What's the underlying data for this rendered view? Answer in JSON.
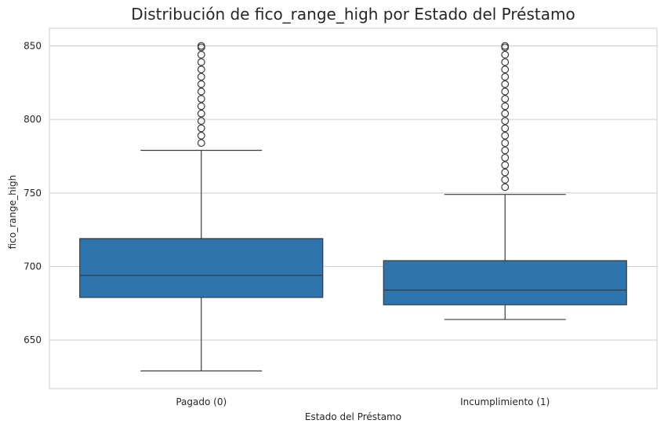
{
  "chart_data": {
    "type": "box",
    "title": "Distribución de fico_range_high por Estado del Préstamo",
    "xlabel": "Estado del Préstamo",
    "ylabel": "fico_range_high",
    "ylim": [
      617,
      862
    ],
    "yticks": [
      650,
      700,
      750,
      800,
      850
    ],
    "grid": true,
    "categories": [
      "Pagado (0)",
      "Incumplimiento (1)"
    ],
    "boxes": [
      {
        "category": "Pagado (0)",
        "whisker_low": 629,
        "q1": 679,
        "median": 694,
        "q3": 719,
        "whisker_high": 779,
        "outliers": [
          784,
          789,
          794,
          799,
          804,
          809,
          814,
          819,
          824,
          829,
          834,
          839,
          844,
          849,
          850
        ]
      },
      {
        "category": "Incumplimiento (1)",
        "whisker_low": 664,
        "q1": 674,
        "median": 684,
        "q3": 704,
        "whisker_high": 749,
        "outliers": [
          754,
          759,
          764,
          769,
          774,
          779,
          784,
          789,
          794,
          799,
          804,
          809,
          814,
          819,
          824,
          829,
          834,
          839,
          844,
          849,
          850
        ]
      }
    ],
    "colors": {
      "box_fill": "#2e75ad",
      "line": "#3a3a3a",
      "grid": "#cccccc",
      "spine": "#cccccc"
    }
  }
}
